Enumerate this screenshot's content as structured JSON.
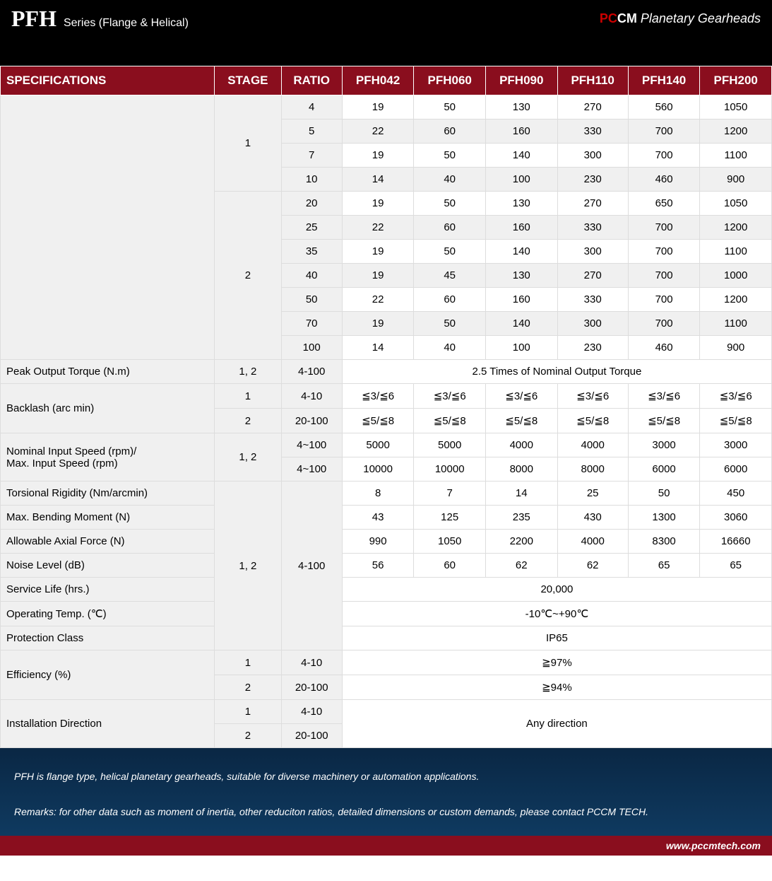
{
  "header": {
    "series_code": "PFH",
    "series_label": "Series  (Flange & Helical)",
    "brand_pc": "PC",
    "brand_cm": "CM",
    "brand_product": " Planetary Gearheads"
  },
  "table": {
    "headers": [
      "SPECIFICATIONS",
      "STAGE",
      "RATIO",
      "PFH042",
      "PFH060",
      "PFH090",
      "PFH110",
      "PFH140",
      "PFH200"
    ],
    "nominal_rows": [
      {
        "stage": "1",
        "stage_span": 4,
        "ratio": "4",
        "v": [
          "19",
          "50",
          "130",
          "270",
          "560",
          "1050"
        ],
        "alt": false
      },
      {
        "ratio": "5",
        "v": [
          "22",
          "60",
          "160",
          "330",
          "700",
          "1200"
        ],
        "alt": true
      },
      {
        "ratio": "7",
        "v": [
          "19",
          "50",
          "140",
          "300",
          "700",
          "1100"
        ],
        "alt": false
      },
      {
        "ratio": "10",
        "v": [
          "14",
          "40",
          "100",
          "230",
          "460",
          "900"
        ],
        "alt": true
      },
      {
        "stage": "2",
        "stage_span": 7,
        "ratio": "20",
        "v": [
          "19",
          "50",
          "130",
          "270",
          "650",
          "1050"
        ],
        "alt": false
      },
      {
        "ratio": "25",
        "v": [
          "22",
          "60",
          "160",
          "330",
          "700",
          "1200"
        ],
        "alt": true
      },
      {
        "ratio": "35",
        "v": [
          "19",
          "50",
          "140",
          "300",
          "700",
          "1100"
        ],
        "alt": false
      },
      {
        "ratio": "40",
        "v": [
          "19",
          "45",
          "130",
          "270",
          "700",
          "1000"
        ],
        "alt": true
      },
      {
        "ratio": "50",
        "v": [
          "22",
          "60",
          "160",
          "330",
          "700",
          "1200"
        ],
        "alt": false
      },
      {
        "ratio": "70",
        "v": [
          "19",
          "50",
          "140",
          "300",
          "700",
          "1100"
        ],
        "alt": true
      },
      {
        "ratio": "100",
        "v": [
          "14",
          "40",
          "100",
          "230",
          "460",
          "900"
        ],
        "alt": false
      }
    ],
    "peak": {
      "label": "Peak Output Torque (N.m)",
      "stage": "1, 2",
      "ratio": "4-100",
      "merged": "2.5 Times of Nominal Output Torque"
    },
    "backlash": {
      "label": "Backlash (arc min)",
      "rows": [
        {
          "stage": "1",
          "ratio": "4-10",
          "v": [
            "≦3/≦6",
            "≦3/≦6",
            "≦3/≦6",
            "≦3/≦6",
            "≦3/≦6",
            "≦3/≦6"
          ]
        },
        {
          "stage": "2",
          "ratio": "20-100",
          "v": [
            "≦5/≦8",
            "≦5/≦8",
            "≦5/≦8",
            "≦5/≦8",
            "≦5/≦8",
            "≦5/≦8"
          ]
        }
      ]
    },
    "speed": {
      "label1": "Nominal Input Speed (rpm)/",
      "label2": "Max. Input Speed (rpm)",
      "stage": "1, 2",
      "rows": [
        {
          "ratio": "4~100",
          "v": [
            "5000",
            "5000",
            "4000",
            "4000",
            "3000",
            "3000"
          ]
        },
        {
          "ratio": "4~100",
          "v": [
            "10000",
            "10000",
            "8000",
            "8000",
            "6000",
            "6000"
          ]
        }
      ]
    },
    "block": {
      "stage": "1, 2",
      "ratio": "4-100",
      "rows": [
        {
          "label": "Torsional Rigidity (Nm/arcmin)",
          "v": [
            "8",
            "7",
            "14",
            "25",
            "50",
            "450"
          ]
        },
        {
          "label": "Max. Bending Moment (N)",
          "v": [
            "43",
            "125",
            "235",
            "430",
            "1300",
            "3060"
          ]
        },
        {
          "label": "Allowable Axial Force (N)",
          "v": [
            "990",
            "1050",
            "2200",
            "4000",
            "8300",
            "16660"
          ]
        },
        {
          "label": "Noise Level (dB)",
          "v": [
            "56",
            "60",
            "62",
            "62",
            "65",
            "65"
          ]
        }
      ],
      "merged": [
        {
          "label": "Service Life (hrs.)",
          "val": "20,000"
        },
        {
          "label": "Operating Temp. (℃)",
          "val": "-10℃~+90℃"
        },
        {
          "label": "Protection Class",
          "val": "IP65"
        }
      ]
    },
    "eff": {
      "label": "Efficiency (%)",
      "rows": [
        {
          "stage": "1",
          "ratio": "4-10",
          "val": "≧97%"
        },
        {
          "stage": "2",
          "ratio": "20-100",
          "val": "≧94%"
        }
      ]
    },
    "install": {
      "label": "Installation Direction",
      "rows": [
        {
          "stage": "1",
          "ratio": "4-10"
        },
        {
          "stage": "2",
          "ratio": "20-100"
        }
      ],
      "val": "Any direction"
    }
  },
  "footer": {
    "line1": "PFH is flange type, helical planetary gearheads, suitable for diverse machinery or automation applications.",
    "line2": "Remarks: for other data such as moment of inertia, other reduciton ratios, detailed dimensions or custom demands, please contact PCCM TECH.",
    "url": "www.pccmtech.com"
  }
}
